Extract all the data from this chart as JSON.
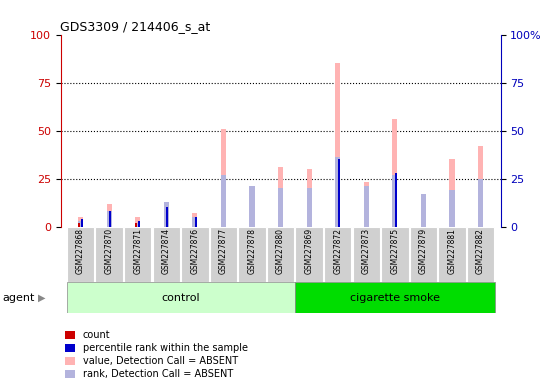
{
  "title": "GDS3309 / 214406_s_at",
  "samples": [
    "GSM227868",
    "GSM227870",
    "GSM227871",
    "GSM227874",
    "GSM227876",
    "GSM227877",
    "GSM227878",
    "GSM227880",
    "GSM227869",
    "GSM227872",
    "GSM227873",
    "GSM227875",
    "GSM227879",
    "GSM227881",
    "GSM227882"
  ],
  "groups": [
    "control",
    "control",
    "control",
    "control",
    "control",
    "control",
    "control",
    "control",
    "cigarette smoke",
    "cigarette smoke",
    "cigarette smoke",
    "cigarette smoke",
    "cigarette smoke",
    "cigarette smoke",
    "cigarette smoke"
  ],
  "count": [
    2,
    0,
    2,
    0,
    0,
    0,
    0,
    0,
    0,
    0,
    0,
    0,
    0,
    0,
    0
  ],
  "rank": [
    4,
    8,
    3,
    10,
    5,
    0,
    0,
    0,
    0,
    35,
    0,
    28,
    0,
    0,
    0
  ],
  "value_absent": [
    5,
    12,
    5,
    9,
    7,
    51,
    20,
    31,
    30,
    85,
    23,
    56,
    17,
    35,
    42
  ],
  "rank_absent": [
    3,
    8,
    2,
    13,
    5,
    27,
    21,
    20,
    20,
    36,
    21,
    27,
    17,
    19,
    25
  ],
  "ylim_left": [
    0,
    100
  ],
  "ylim_right": [
    0,
    100
  ],
  "yticks": [
    0,
    25,
    50,
    75,
    100
  ],
  "color_count": "#cc0000",
  "color_rank": "#0000cc",
  "color_value_absent": "#ffb3b3",
  "color_rank_absent": "#b3b3dd",
  "bg_control": "#ccffcc",
  "bg_smoke": "#00cc00",
  "agent_label": "agent",
  "control_label": "control",
  "smoke_label": "cigarette smoke",
  "n_control": 8,
  "n_smoke": 7,
  "left_axis_color": "#cc0000",
  "right_axis_color": "#0000bb"
}
